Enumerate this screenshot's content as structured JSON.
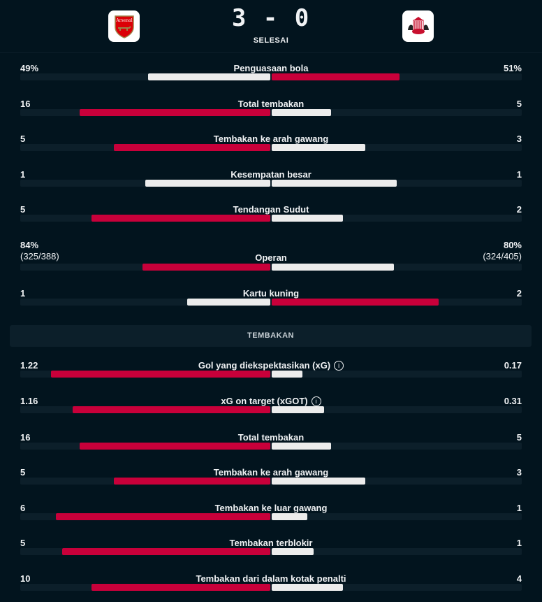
{
  "match": {
    "home_team_crest": "arsenal-crest",
    "home_crest_text": "Arsenal",
    "away_team_crest": "sunderland-crest",
    "score": "3 - 0",
    "status": "SELESAI"
  },
  "colors": {
    "background": "#02141e",
    "track": "#0c1f2a",
    "leader": "#c8003a",
    "other": "#ececec"
  },
  "stats": [
    {
      "label": "Penguasaan bola",
      "home": "49%",
      "away": "51%",
      "home_value": 49,
      "away_value": 51
    },
    {
      "label": "Total tembakan",
      "home": "16",
      "away": "5",
      "home_value": 16,
      "away_value": 5
    },
    {
      "label": "Tembakan ke arah gawang",
      "home": "5",
      "away": "3",
      "home_value": 5,
      "away_value": 3
    },
    {
      "label": "Kesempatan besar",
      "home": "1",
      "away": "1",
      "home_value": 1,
      "away_value": 1
    },
    {
      "label": "Tendangan Sudut",
      "home": "5",
      "away": "2",
      "home_value": 5,
      "away_value": 2
    },
    {
      "label": "Operan",
      "home": "84%",
      "home_sub": "(325/388)",
      "away": "80%",
      "away_sub": "(324/405)",
      "home_value": 84,
      "away_value": 80
    },
    {
      "label": "Kartu kuning",
      "home": "1",
      "away": "2",
      "home_value": 1,
      "away_value": 2
    }
  ],
  "section_title": "TEMBAKAN",
  "shots": [
    {
      "label": "Gol yang diekspektasikan (xG)",
      "info": "i",
      "home": "1.22",
      "away": "0.17",
      "home_value": 1.22,
      "away_value": 0.17
    },
    {
      "label": "xG on target (xGOT)",
      "info": "i",
      "home": "1.16",
      "away": "0.31",
      "home_value": 1.16,
      "away_value": 0.31
    },
    {
      "label": "Total tembakan",
      "home": "16",
      "away": "5",
      "home_value": 16,
      "away_value": 5
    },
    {
      "label": "Tembakan ke arah gawang",
      "home": "5",
      "away": "3",
      "home_value": 5,
      "away_value": 3
    },
    {
      "label": "Tembakan ke luar gawang",
      "home": "6",
      "away": "1",
      "home_value": 6,
      "away_value": 1
    },
    {
      "label": "Tembakan terblokir",
      "home": "5",
      "away": "1",
      "home_value": 5,
      "away_value": 1
    },
    {
      "label": "Tembakan dari dalam kotak penalti",
      "home": "10",
      "away": "4",
      "home_value": 10,
      "away_value": 4
    }
  ]
}
